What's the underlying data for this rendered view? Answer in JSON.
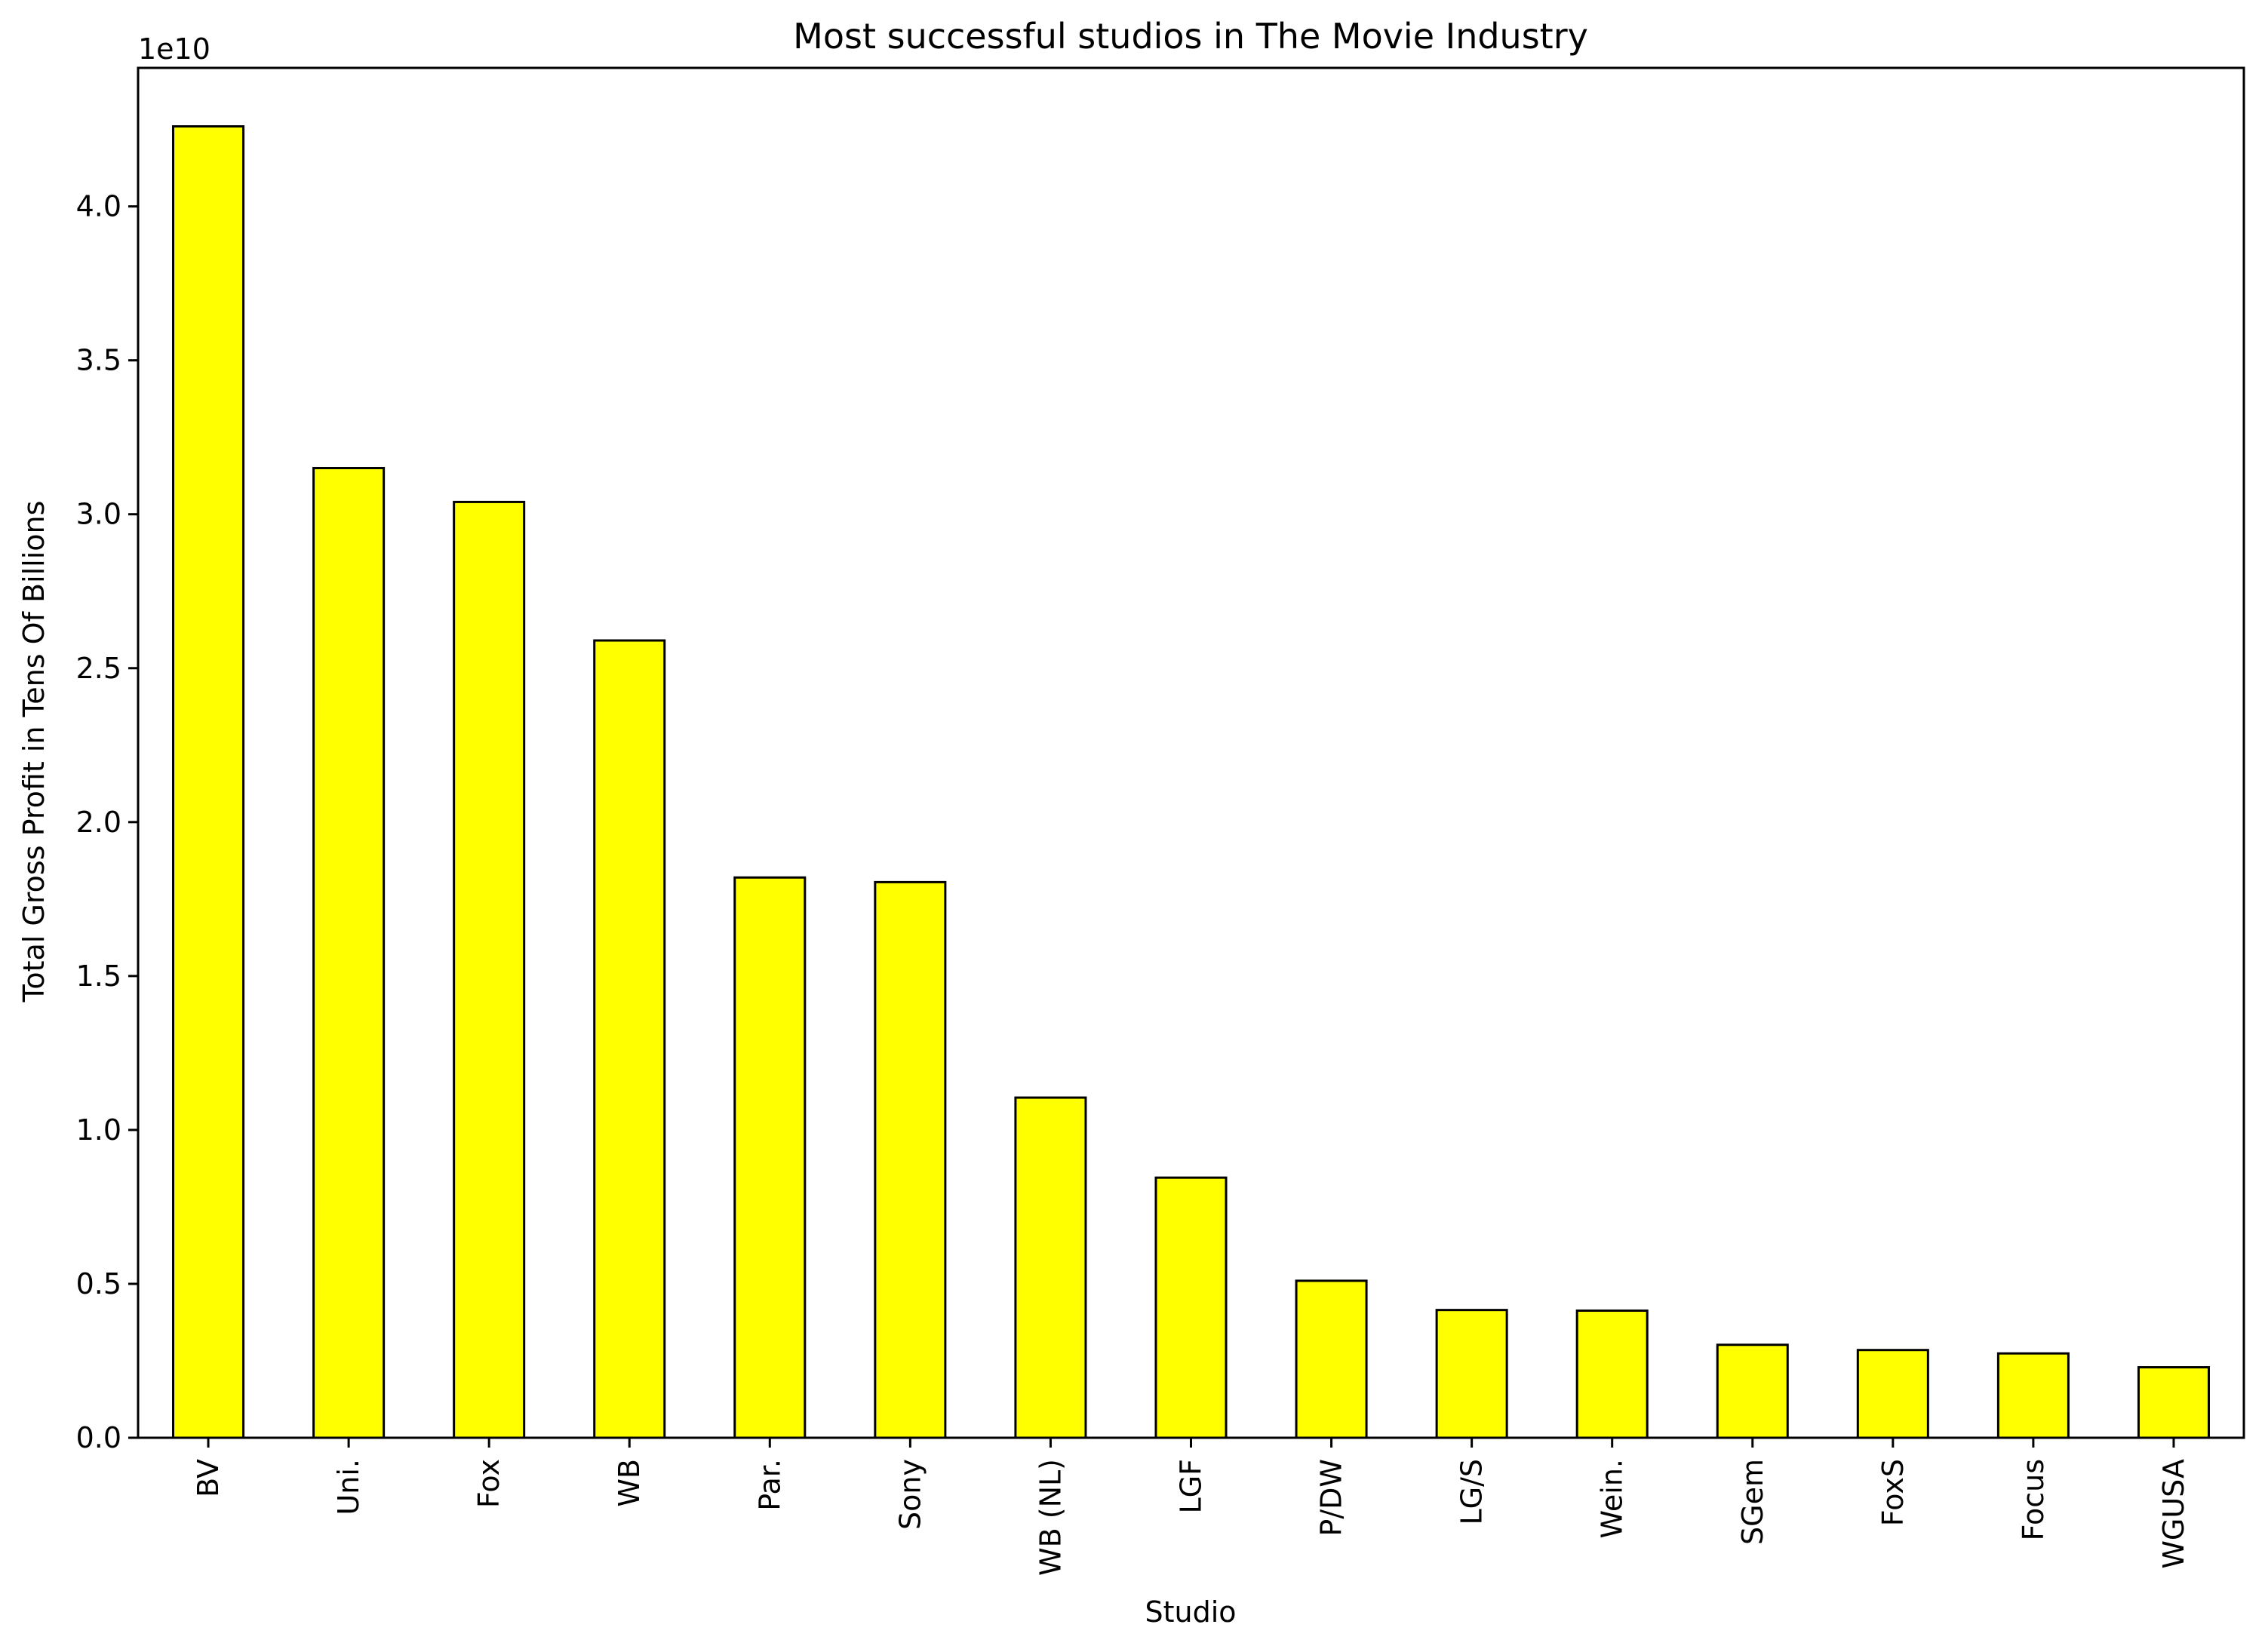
{
  "chart_data": {
    "type": "bar",
    "title": "Most successful studios in The Movie Industry",
    "xlabel": "Studio",
    "ylabel": "Total Gross Profit in Tens Of Billions",
    "offset_text": "1e10",
    "categories": [
      "BV",
      "Uni.",
      "Fox",
      "WB",
      "Par.",
      "Sony",
      "WB (NL)",
      "LGF",
      "P/DW",
      "LG/S",
      "Wein.",
      "SGem",
      "FoxS",
      "Focus",
      "WGUSA"
    ],
    "values": [
      42600000000,
      31500000000,
      30400000000,
      25900000000,
      18200000000,
      18050000000,
      11050000000,
      8450000000,
      5100000000,
      4150000000,
      4130000000,
      3020000000,
      2850000000,
      2740000000,
      2290000000
    ],
    "ylim": [
      0,
      44500000000
    ],
    "yticks": [
      0,
      5000000000,
      10000000000,
      15000000000,
      20000000000,
      25000000000,
      30000000000,
      35000000000,
      40000000000
    ],
    "ytick_labels": [
      "0.0",
      "0.5",
      "1.0",
      "1.5",
      "2.0",
      "2.5",
      "3.0",
      "3.5",
      "4.0"
    ],
    "bar_color": "#ffff00",
    "edge_color": "#000000",
    "grid": false,
    "legend": "none"
  }
}
